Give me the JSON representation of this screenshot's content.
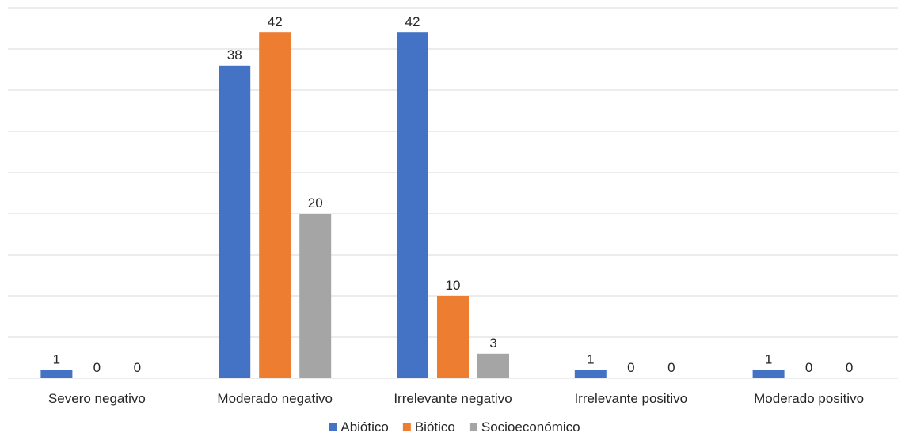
{
  "chart_data": {
    "type": "bar",
    "categories": [
      "Severo negativo",
      "Moderado negativo",
      "Irrelevante negativo",
      "Irrelevante positivo",
      "Moderado positivo"
    ],
    "series": [
      {
        "name": "Abiótico",
        "color": "#4472C4",
        "values": [
          1,
          38,
          42,
          1,
          1
        ]
      },
      {
        "name": "Biótico",
        "color": "#ED7D31",
        "values": [
          0,
          42,
          10,
          0,
          0
        ]
      },
      {
        "name": "Socioeconómico",
        "color": "#A5A5A5",
        "values": [
          0,
          20,
          3,
          0,
          0
        ]
      }
    ],
    "ylim": [
      0,
      45
    ],
    "grid": true,
    "legend_position": "bottom",
    "data_labels": true,
    "title": "",
    "xlabel": "",
    "ylabel": ""
  }
}
